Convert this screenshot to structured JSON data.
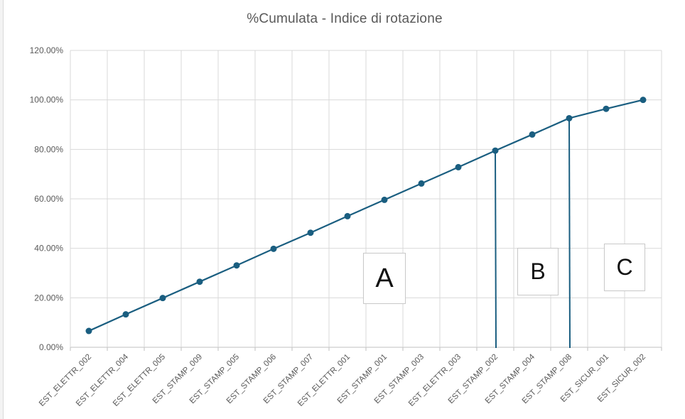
{
  "chart_data": {
    "type": "line",
    "title": "%Cumulata - Indice di rotazione",
    "categories": [
      "EST_ELETTR_002",
      "EST_ELETTR_004",
      "EST_ELETTR_005",
      "EST_STAMP_009",
      "EST_STAMP_005",
      "EST_STAMP_006",
      "EST_STAMP_007",
      "EST_ELETTR_001",
      "EST_STAMP_001",
      "EST_STAMP_003",
      "EST_ELETTR_003",
      "EST_STAMP_002",
      "EST_STAMP_004",
      "EST_STAMP_008",
      "EST_SICUR_001",
      "EST_SICUR_002"
    ],
    "values": [
      6.6,
      13.3,
      19.9,
      26.5,
      33.1,
      39.8,
      46.3,
      53.0,
      59.6,
      66.2,
      72.8,
      79.5,
      86.0,
      92.6,
      96.4,
      100.0
    ],
    "ylim": [
      0,
      120
    ],
    "yticks": [
      "0.00%",
      "20.00%",
      "40.00%",
      "60.00%",
      "80.00%",
      "100.00%",
      "120.00%"
    ],
    "grid": true,
    "series_color": "#1a5e80",
    "annotations": {
      "cut_lines_at": [
        "EST_STAMP_002",
        "EST_STAMP_008"
      ],
      "zones": [
        "A",
        "B",
        "C"
      ]
    }
  }
}
